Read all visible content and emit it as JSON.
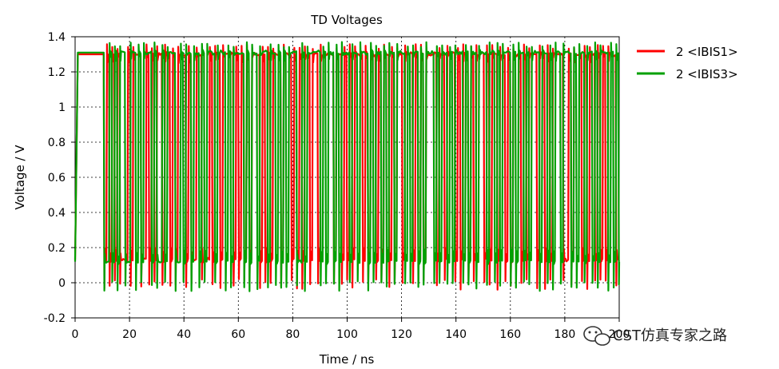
{
  "chart_data": {
    "type": "line",
    "title": "TD Voltages",
    "xlabel": "Time / ns",
    "ylabel": "Voltage / V",
    "xlim": [
      0,
      200
    ],
    "ylim": [
      -0.2,
      1.4
    ],
    "xticks": [
      "0",
      "20",
      "40",
      "60",
      "80",
      "100",
      "120",
      "140",
      "160",
      "180",
      "200"
    ],
    "yticks": [
      "-0.2",
      "0",
      "0.2",
      "0.4",
      "0.6",
      "0.8",
      "1",
      "1.2",
      "1.4"
    ],
    "grid": true,
    "legend_position": "outside-right",
    "series": [
      {
        "name": "2 <IBIS1>",
        "color": "#ff0000",
        "high_level": 1.3,
        "low_level": 0.13,
        "bits": [
          0,
          1,
          0,
          1,
          0,
          1,
          0,
          0,
          0,
          1,
          0,
          1,
          1,
          1,
          0,
          0,
          1,
          0,
          1,
          0,
          1,
          1,
          0,
          1,
          1,
          0,
          1,
          0,
          1,
          1,
          1,
          0,
          1,
          0,
          0,
          1,
          1,
          0,
          0,
          0,
          1,
          0,
          1,
          1,
          0,
          1,
          1,
          1,
          1,
          0,
          1,
          0,
          1,
          0,
          1,
          0,
          1,
          1,
          1,
          0,
          1,
          0,
          1,
          0,
          1,
          1,
          1,
          0,
          1,
          1,
          1,
          0,
          1,
          0,
          1,
          0,
          1,
          1,
          0,
          1,
          1,
          0,
          1,
          1,
          1,
          1,
          1,
          0,
          1,
          1,
          0,
          1,
          0,
          1,
          0,
          1,
          1,
          1,
          0,
          1,
          0,
          1,
          1,
          0,
          1,
          0,
          1,
          1,
          0,
          1,
          0,
          1,
          1,
          0,
          1,
          1,
          1,
          0,
          1,
          0,
          1,
          0,
          1,
          1,
          1,
          1,
          0,
          1,
          1,
          0,
          1,
          1,
          1,
          0,
          1,
          0,
          1,
          1,
          0,
          1,
          0,
          1,
          1,
          1,
          0,
          1,
          0,
          1,
          1,
          0,
          1,
          1,
          0,
          1,
          0,
          1,
          1,
          1,
          0,
          1,
          0,
          1,
          1,
          1,
          0,
          1,
          1,
          0,
          1,
          0,
          1,
          1,
          1,
          1,
          0,
          0,
          1,
          0,
          1,
          1,
          1,
          0,
          1,
          0,
          1,
          1,
          0,
          1,
          0,
          1,
          0,
          1,
          1,
          1,
          0,
          0,
          1
        ],
        "segments": [
          {
            "t": 0,
            "v": 0.13
          },
          {
            "t": 1,
            "v": 1.3
          },
          {
            "t": 10.5,
            "v": 1.3
          }
        ]
      },
      {
        "name": "2 <IBIS3>",
        "color": "#00a000",
        "high_level": 1.31,
        "low_level": 0.12,
        "bits": [
          0,
          0,
          1,
          0,
          1,
          0,
          1,
          1,
          0,
          0,
          1,
          1,
          0,
          1,
          0,
          1,
          1,
          1,
          0,
          1,
          0,
          0,
          1,
          0,
          1,
          1,
          1,
          0,
          0,
          1,
          0,
          1,
          1,
          0,
          1,
          1,
          0,
          1,
          0,
          1,
          1,
          1,
          0,
          1,
          1,
          1,
          0,
          1,
          0,
          1,
          1,
          1,
          1,
          0,
          1,
          0,
          1,
          1,
          0,
          1,
          1,
          1,
          0,
          1,
          1,
          0,
          1,
          0,
          1,
          0,
          1,
          1,
          1,
          0,
          0,
          1,
          0,
          1,
          1,
          1,
          1,
          1,
          0,
          1,
          0,
          1,
          1,
          0,
          1,
          0,
          1,
          1,
          1,
          0,
          1,
          1,
          0,
          1,
          1,
          1,
          0,
          1,
          0,
          1,
          1,
          0,
          1,
          0,
          1,
          1,
          0,
          1,
          1,
          1,
          0,
          1,
          0,
          1,
          1,
          0,
          1,
          0,
          1,
          1,
          1,
          0,
          1,
          0,
          1,
          1,
          0,
          1,
          0,
          1,
          1,
          1,
          0,
          1,
          0,
          1,
          1,
          0,
          1,
          1,
          1,
          0,
          1,
          1,
          0,
          1,
          0,
          1,
          1,
          1,
          0,
          1,
          0,
          1,
          1,
          0,
          1,
          0,
          1,
          1,
          1,
          0,
          1,
          1,
          0,
          1,
          0,
          1,
          1,
          0,
          1,
          1,
          1,
          0,
          1,
          0,
          1,
          1,
          0,
          1,
          1,
          0,
          1,
          0,
          1,
          1,
          1,
          0,
          1,
          0,
          1,
          0,
          1
        ],
        "segments": [
          {
            "t": 0,
            "v": 0.12
          },
          {
            "t": 1,
            "v": 1.31
          },
          {
            "t": 10.5,
            "v": 1.31
          }
        ]
      }
    ]
  },
  "watermark": {
    "text": "CST仿真专家之路",
    "icon": "wechat-icon"
  }
}
